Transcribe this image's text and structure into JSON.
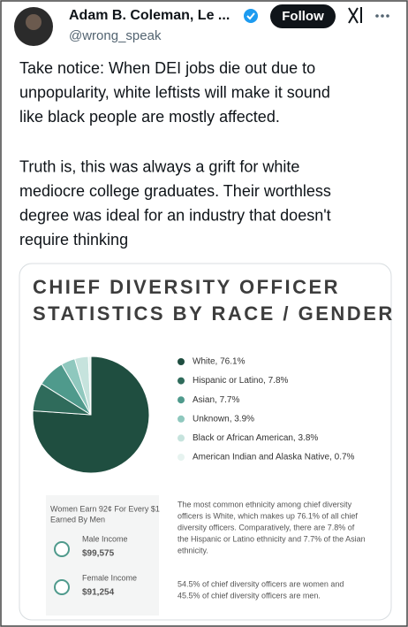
{
  "tweet": {
    "author": {
      "name": "Adam B. Coleman, Le ...",
      "handle": "@wrong_speak",
      "follow": "Follow"
    },
    "paragraphs": [
      [
        "Take notice: When DEI jobs die out due to",
        "unpopularity, white leftists will make it sound",
        "like black people are mostly affected."
      ],
      [
        "Truth is, this was always a grift for white",
        "mediocre college graduates. Their worthless",
        "degree was ideal for an industry that doesn't",
        "require thinking"
      ]
    ],
    "card": {
      "chart_data": {
        "type": "pie",
        "title": [
          "CHIEF DIVERSITY OFFICER",
          "STATISTICS BY RACE / GENDER"
        ],
        "values": [
          76.1,
          7.8,
          7.7,
          3.9,
          3.8,
          0.7
        ],
        "value_labels": [
          "White, 76.1%",
          "Hispanic or Latino, 7.8%",
          "Asian, 7.7%",
          "Unknown, 3.9%",
          "Black or African American, 3.8%",
          "American Indian and Alaska Native, 0.7%"
        ],
        "colors": [
          "#1f4e40",
          "#2f6b5b",
          "#4f9a8c",
          "#8fc8be",
          "#c6e3dd",
          "#e7f3f0"
        ]
      },
      "income_box": {
        "heading": [
          "Women Earn 92¢ For Every $1",
          "Earned By Men"
        ],
        "male_label": "Male Income",
        "male_value": "$99,575",
        "female_label": "Female Income",
        "female_value": "$91,254"
      },
      "notes": [
        [
          "The most common ethnicity among chief diversity",
          "officers is White, which makes up 76.1% of all chief",
          "diversity officers. Comparatively, there are 7.8% of",
          "the Hispanic or Latino ethnicity and 7.7% of the Asian",
          "ethnicity."
        ],
        [
          "54.5% of chief diversity officers are women and",
          "45.5% of chief diversity officers are men."
        ]
      ]
    }
  }
}
